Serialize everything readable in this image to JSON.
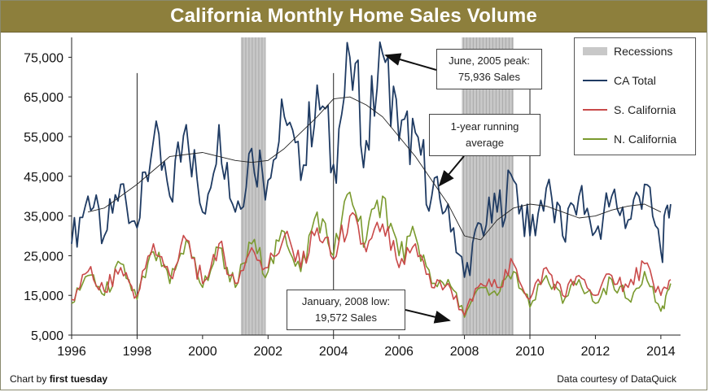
{
  "title": "California Monthly Home Sales Volume",
  "footer": {
    "left_prefix": "Chart by ",
    "left_brand": "first tuesday",
    "right": "Data courtesy of DataQuick"
  },
  "annotations": {
    "peak": {
      "line1": "June, 2005 peak:",
      "line2": "75,936 Sales"
    },
    "average": {
      "line1": "1-year running",
      "line2": "average"
    },
    "low": {
      "line1": "January,  2008 low:",
      "line2": "19,572 Sales"
    }
  },
  "legend": [
    {
      "label": "Recessions",
      "kind": "rect",
      "color": "#c8c8c8"
    },
    {
      "label": "CA Total",
      "kind": "line",
      "color": "#1f3b63"
    },
    {
      "label": "S. California",
      "kind": "line",
      "color": "#c94a4a"
    },
    {
      "label": "N. California",
      "kind": "line",
      "color": "#7a9a2e"
    }
  ],
  "colors": {
    "ca_total": "#1f3b63",
    "s_cal": "#c94a4a",
    "n_cal": "#7a9a2e",
    "running_avg": "#222222",
    "recession": "#c8c8c8",
    "title_bar": "#8d7f3c"
  },
  "chart_data": {
    "type": "line",
    "title": "California Monthly Home Sales Volume",
    "xlabel": "",
    "ylabel": "",
    "xlim": [
      1996,
      2014.6
    ],
    "ylim": [
      5000,
      80000
    ],
    "x_ticks": [
      "1996",
      "1998",
      "2000",
      "2002",
      "2004",
      "2006",
      "2008",
      "2010",
      "2012",
      "2014"
    ],
    "y_ticks": [
      "5,000",
      "15,000",
      "25,000",
      "35,000",
      "45,000",
      "55,000",
      "65,000",
      "75,000"
    ],
    "grid": false,
    "legend_position": "top-right",
    "recessions": [
      [
        2001.17,
        2001.92
      ],
      [
        2007.92,
        2009.5
      ]
    ],
    "series": [
      {
        "name": "CA Total",
        "x": [
          1996.0,
          1996.5,
          1997.0,
          1997.5,
          1998.0,
          1998.5,
          1999.0,
          1999.5,
          2000.0,
          2000.5,
          2001.0,
          2001.5,
          2002.0,
          2002.5,
          2003.0,
          2003.5,
          2004.0,
          2004.5,
          2005.0,
          2005.5,
          2006.0,
          2006.5,
          2007.0,
          2007.5,
          2008.0,
          2008.5,
          2009.0,
          2009.5,
          2010.0,
          2010.5,
          2011.0,
          2011.5,
          2012.0,
          2012.5,
          2013.0,
          2013.5,
          2014.0,
          2014.3
        ],
        "values": [
          28000,
          40000,
          30000,
          43000,
          32000,
          54000,
          40000,
          58000,
          36000,
          58000,
          36000,
          52000,
          44000,
          60000,
          44000,
          68000,
          48000,
          75000,
          54000,
          75936,
          54000,
          56000,
          40000,
          38000,
          19572,
          33000,
          36000,
          44000,
          30000,
          42000,
          30000,
          40000,
          31000,
          40000,
          34000,
          43000,
          26000,
          38000
        ]
      },
      {
        "name": "1-year running average",
        "x": [
          1996.5,
          1997.0,
          1998.0,
          1999.0,
          2000.0,
          2000.5,
          2001.0,
          2001.5,
          2002.0,
          2002.5,
          2003.0,
          2003.5,
          2004.0,
          2004.5,
          2005.0,
          2005.5,
          2006.0,
          2006.5,
          2007.0,
          2007.5,
          2008.0,
          2008.5,
          2009.0,
          2009.5,
          2010.0,
          2010.5,
          2011.0,
          2011.5,
          2012.0,
          2012.5,
          2013.0,
          2013.5,
          2014.0
        ],
        "values": [
          36000,
          37000,
          43000,
          50000,
          51000,
          50000,
          49000,
          48500,
          49000,
          52000,
          56000,
          60000,
          64500,
          65000,
          63000,
          60000,
          55000,
          50000,
          44000,
          38000,
          30000,
          29000,
          34000,
          37000,
          38000,
          37500,
          36000,
          34500,
          35000,
          36500,
          37500,
          38000,
          36000
        ]
      },
      {
        "name": "S. California",
        "x": [
          1996.0,
          1996.5,
          1997.0,
          1997.5,
          1998.0,
          1998.5,
          1999.0,
          1999.5,
          2000.0,
          2000.5,
          2001.0,
          2001.5,
          2002.0,
          2002.5,
          2003.0,
          2003.5,
          2004.0,
          2004.5,
          2005.0,
          2005.5,
          2006.0,
          2006.5,
          2007.0,
          2007.5,
          2008.0,
          2008.5,
          2009.0,
          2009.5,
          2010.0,
          2010.5,
          2011.0,
          2011.5,
          2012.0,
          2012.5,
          2013.0,
          2013.5,
          2014.0,
          2014.3
        ],
        "values": [
          14000,
          21000,
          16000,
          22000,
          15000,
          28000,
          20000,
          29000,
          18000,
          28000,
          18000,
          27000,
          22000,
          30000,
          22000,
          32000,
          24000,
          35000,
          26000,
          33000,
          22000,
          28000,
          17000,
          18000,
          10000,
          18000,
          17000,
          23000,
          14000,
          22000,
          15000,
          20000,
          15000,
          20000,
          17000,
          23000,
          15000,
          19000
        ]
      },
      {
        "name": "N. California",
        "x": [
          1996.0,
          1996.5,
          1997.0,
          1997.5,
          1998.0,
          1998.5,
          1999.0,
          1999.5,
          2000.0,
          2000.5,
          2001.0,
          2001.5,
          2002.0,
          2002.5,
          2003.0,
          2003.5,
          2004.0,
          2004.5,
          2005.0,
          2005.5,
          2006.0,
          2006.5,
          2007.0,
          2007.5,
          2008.0,
          2008.5,
          2009.0,
          2009.5,
          2010.0,
          2010.5,
          2011.0,
          2011.5,
          2012.0,
          2012.5,
          2013.0,
          2013.5,
          2014.0,
          2014.3
        ],
        "values": [
          13000,
          20000,
          15000,
          23000,
          14000,
          26000,
          18000,
          29000,
          17000,
          27000,
          17000,
          28000,
          21000,
          31000,
          21000,
          36000,
          25000,
          41000,
          29000,
          40000,
          25000,
          30000,
          18000,
          19000,
          9500,
          17000,
          15000,
          21000,
          12000,
          20000,
          13000,
          19000,
          13000,
          19000,
          14000,
          21000,
          11000,
          18000
        ]
      }
    ]
  }
}
